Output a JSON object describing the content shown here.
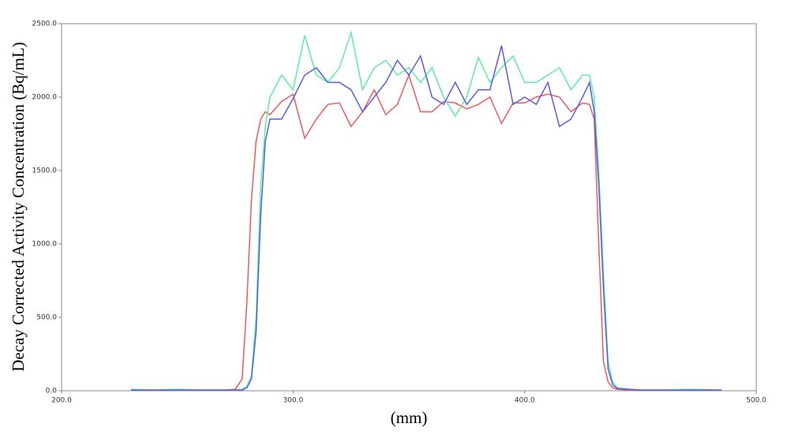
{
  "chart_data": {
    "type": "line",
    "x_label": "(mm)",
    "y_label": "Decay Corrected Activity Concentration (Bq/mL)",
    "x": [
      230,
      240,
      250,
      260,
      270,
      275,
      278,
      280,
      282,
      284,
      286,
      288,
      290,
      295,
      300,
      305,
      310,
      315,
      320,
      325,
      330,
      335,
      340,
      345,
      350,
      355,
      360,
      365,
      370,
      375,
      380,
      385,
      390,
      395,
      400,
      405,
      410,
      415,
      420,
      425,
      428,
      430,
      432,
      434,
      436,
      438,
      440,
      445,
      450,
      460,
      470,
      485
    ],
    "series": [
      {
        "color": "#f05a5a",
        "values": [
          5,
          5,
          5,
          5,
          5,
          10,
          80,
          600,
          1300,
          1700,
          1850,
          1900,
          1880,
          1970,
          2020,
          1720,
          1850,
          1950,
          1960,
          1800,
          1900,
          2050,
          1880,
          1950,
          2150,
          1900,
          1900,
          1970,
          1960,
          1920,
          1950,
          2000,
          1820,
          1960,
          1960,
          2000,
          2020,
          2000,
          1900,
          1960,
          1950,
          1850,
          1000,
          200,
          60,
          20,
          10,
          5,
          5,
          5,
          5,
          5
        ]
      },
      {
        "color": "#5af0a0",
        "values": [
          10,
          5,
          10,
          5,
          5,
          5,
          10,
          30,
          100,
          500,
          1400,
          1800,
          2000,
          2150,
          2050,
          2420,
          2150,
          2100,
          2200,
          2440,
          2050,
          2200,
          2250,
          2150,
          2200,
          2100,
          2200,
          2000,
          1870,
          2000,
          2270,
          2100,
          2200,
          2280,
          2100,
          2100,
          2150,
          2200,
          2050,
          2150,
          2150,
          2000,
          1500,
          800,
          200,
          60,
          20,
          10,
          5,
          5,
          10,
          5
        ]
      },
      {
        "color": "#5a5af0",
        "values": [
          5,
          5,
          5,
          5,
          5,
          5,
          5,
          20,
          80,
          400,
          1200,
          1700,
          1850,
          1850,
          1990,
          2150,
          2200,
          2100,
          2100,
          2050,
          1900,
          2000,
          2100,
          2250,
          2150,
          2280,
          2000,
          1950,
          2100,
          1950,
          2050,
          2050,
          2350,
          1950,
          2000,
          1950,
          2100,
          1800,
          1850,
          2000,
          2100,
          1900,
          1400,
          700,
          150,
          40,
          15,
          10,
          5,
          5,
          5,
          5
        ]
      }
    ],
    "xlim": [
      200,
      500
    ],
    "xticks": [
      {
        "value": 200,
        "label": "200.0"
      },
      {
        "value": 300,
        "label": "300.0"
      },
      {
        "value": 400,
        "label": "400.0"
      },
      {
        "value": 500,
        "label": "500.0"
      }
    ],
    "ylim": [
      0,
      2500
    ],
    "yticks": [
      {
        "value": 0,
        "label": "0.0"
      },
      {
        "value": 500,
        "label": "500.0"
      },
      {
        "value": 1000,
        "label": "1000.0"
      },
      {
        "value": 1500,
        "label": "1500.0"
      },
      {
        "value": 2000,
        "label": "2000.0"
      },
      {
        "value": 2500,
        "label": "2500.0"
      }
    ]
  }
}
